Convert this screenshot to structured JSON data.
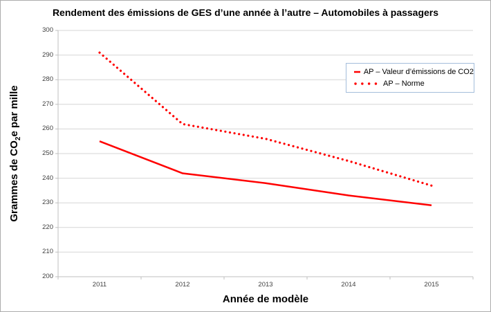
{
  "title": "Rendement des émissions de GES d’une année à l’autre – Automobiles à passagers",
  "colors": {
    "series_red": "#FF0000",
    "gridline": "#D6D6D6",
    "axis_line": "#BFBFBF",
    "tick_text": "#3F3F3F",
    "text": "#000000",
    "legend_border": "#A3BDDB",
    "frame_border": "#ACACAC"
  },
  "chart_data": {
    "type": "line",
    "title": "Rendement des émissions de GES d’une année à l’autre – Automobiles à passagers",
    "categories": [
      "2011",
      "2012",
      "2013",
      "2014",
      "2015"
    ],
    "series": [
      {
        "name": "AP – Valeur d’émissions de CO2",
        "style": "solid",
        "color": "#FF0000",
        "values": [
          255,
          242,
          238,
          233,
          229
        ]
      },
      {
        "name": "AP – Norme",
        "style": "dotted",
        "color": "#FF0000",
        "values": [
          291,
          262,
          256,
          247,
          237
        ]
      }
    ],
    "xlabel": "Année de modèle",
    "ylabel": "Grammes de CO2e par mille",
    "ylim": [
      200,
      300
    ],
    "yticks": [
      200,
      210,
      220,
      230,
      240,
      250,
      260,
      270,
      280,
      290,
      300
    ],
    "grid": true,
    "legend_position": "inside-top-right"
  },
  "y_axis_title_parts": {
    "pre": "Grammes de CO",
    "sub": "2",
    "post": "e par mille"
  },
  "x_axis_title": "Année de modèle",
  "legend": {
    "entries": [
      {
        "label": "AP – Valeur d’émissions de CO2",
        "marker": "solid-red-line"
      },
      {
        "label": "AP – Norme",
        "marker": "dotted-red-line"
      }
    ]
  }
}
